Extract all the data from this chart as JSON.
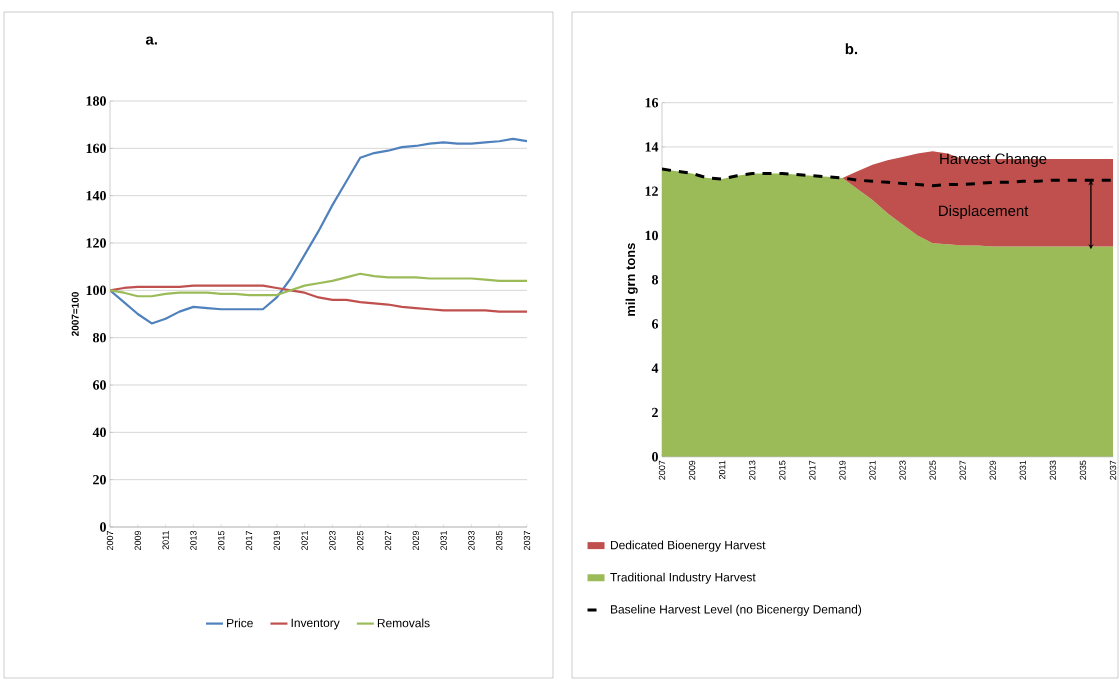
{
  "chart_data": [
    {
      "type": "line",
      "title": "a.",
      "ylabel": "2007=100",
      "x": [
        2007,
        2008,
        2009,
        2010,
        2011,
        2012,
        2013,
        2014,
        2015,
        2016,
        2017,
        2018,
        2019,
        2020,
        2021,
        2022,
        2023,
        2024,
        2025,
        2026,
        2027,
        2028,
        2029,
        2030,
        2031,
        2032,
        2033,
        2034,
        2035,
        2036,
        2037
      ],
      "series": [
        {
          "name": "Price",
          "color": "#4f81bd",
          "values": [
            100,
            95,
            90,
            86,
            88,
            91,
            93,
            92.5,
            92,
            92,
            92,
            92,
            97,
            105,
            115,
            125,
            136,
            146,
            156,
            158,
            159,
            160.5,
            161,
            162,
            162.5,
            162,
            162,
            162.5,
            163,
            164,
            163
          ]
        },
        {
          "name": "Inventory",
          "color": "#c0504d",
          "values": [
            100,
            101,
            101.5,
            101.5,
            101.5,
            101.5,
            102,
            102,
            102,
            102,
            102,
            102,
            101,
            100,
            99,
            97,
            96,
            96,
            95,
            94.5,
            94,
            93,
            92.5,
            92,
            91.5,
            91.5,
            91.5,
            91.5,
            91,
            91,
            91
          ]
        },
        {
          "name": "Removals",
          "color": "#9bbb59",
          "values": [
            100,
            99,
            97.5,
            97.5,
            98.5,
            99,
            99,
            99,
            98.5,
            98.5,
            98,
            98,
            98,
            100,
            102,
            103,
            104,
            105.5,
            107,
            106,
            105.5,
            105.5,
            105.5,
            105,
            105,
            105,
            105,
            104.5,
            104,
            104,
            104
          ]
        }
      ],
      "xlim": [
        2007,
        2037
      ],
      "xticks": [
        2007,
        2009,
        2011,
        2013,
        2015,
        2017,
        2019,
        2021,
        2023,
        2025,
        2027,
        2029,
        2031,
        2033,
        2035,
        2037
      ],
      "ylim": [
        0,
        180
      ],
      "yticks": [
        0,
        20,
        40,
        60,
        80,
        100,
        120,
        140,
        160,
        180
      ],
      "grid": "y",
      "legend": "bottom"
    },
    {
      "type": "area",
      "title": "b.",
      "ylabel": "mil grn tons",
      "stacked": true,
      "x": [
        2007,
        2008,
        2009,
        2010,
        2011,
        2012,
        2013,
        2014,
        2015,
        2016,
        2017,
        2018,
        2019,
        2020,
        2021,
        2022,
        2023,
        2024,
        2025,
        2026,
        2027,
        2028,
        2029,
        2030,
        2031,
        2032,
        2033,
        2034,
        2035,
        2036,
        2037
      ],
      "series": [
        {
          "name": "Traditional Industry Harvest",
          "color": "#9bbb59",
          "values": [
            13.0,
            12.9,
            12.8,
            12.6,
            12.55,
            12.7,
            12.8,
            12.8,
            12.8,
            12.75,
            12.7,
            12.65,
            12.6,
            12.1,
            11.6,
            11.0,
            10.5,
            10.0,
            9.65,
            9.6,
            9.55,
            9.55,
            9.5,
            9.5,
            9.5,
            9.5,
            9.5,
            9.5,
            9.5,
            9.5,
            9.5
          ]
        },
        {
          "name": "Dedicated Bioenergy Harvest",
          "color": "#c0504d",
          "values": [
            0,
            0,
            0,
            0,
            0,
            0,
            0,
            0,
            0,
            0,
            0,
            0,
            0,
            0.8,
            1.6,
            2.4,
            3.05,
            3.7,
            4.15,
            4.1,
            3.9,
            3.9,
            3.95,
            3.95,
            3.95,
            3.95,
            3.95,
            3.95,
            3.95,
            3.95,
            3.95
          ]
        },
        {
          "name": "Baseline Harvest Level (no Bicenergy Demand)",
          "type": "line",
          "line_style": "dashed",
          "color": "#000000",
          "values": [
            13.0,
            12.9,
            12.8,
            12.6,
            12.55,
            12.7,
            12.8,
            12.8,
            12.8,
            12.75,
            12.7,
            12.65,
            12.6,
            12.5,
            12.45,
            12.4,
            12.35,
            12.3,
            12.25,
            12.3,
            12.3,
            12.35,
            12.4,
            12.4,
            12.45,
            12.45,
            12.5,
            12.5,
            12.5,
            12.5,
            12.5
          ]
        }
      ],
      "xlim": [
        2007,
        2037
      ],
      "xticks": [
        2007,
        2009,
        2011,
        2013,
        2015,
        2017,
        2019,
        2021,
        2023,
        2025,
        2027,
        2029,
        2031,
        2033,
        2035,
        2037
      ],
      "ylim": [
        0,
        16
      ],
      "yticks": [
        0,
        2,
        4,
        6,
        8,
        10,
        12,
        14,
        16
      ],
      "grid": "y",
      "legend": "bottom left",
      "annotations": [
        "Harvest Change",
        "Displacement"
      ]
    }
  ]
}
